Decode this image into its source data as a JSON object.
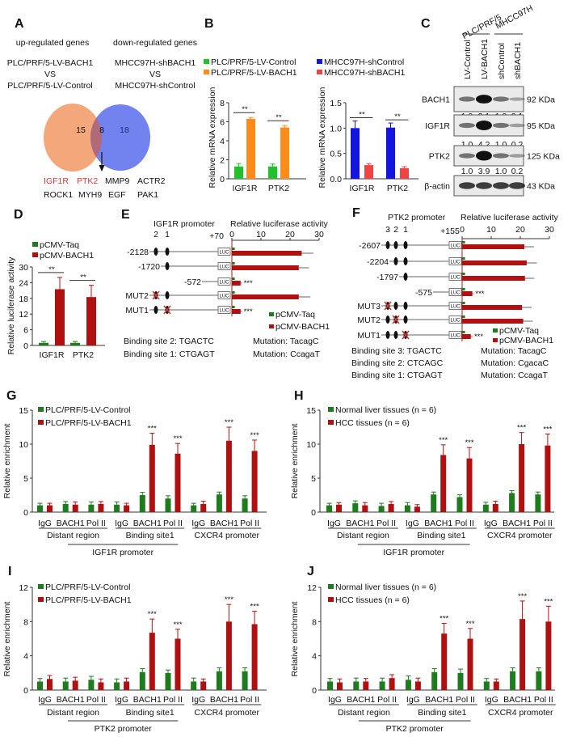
{
  "panel_labels": {
    "A": "A",
    "B": "B",
    "C": "C",
    "D": "D",
    "E": "E",
    "F": "F",
    "G": "G",
    "H": "H",
    "I": "I",
    "J": "J"
  },
  "venn": {
    "left_title": "up-regulated genes",
    "right_title": "down-regulated genes",
    "left_compare": [
      "PLC/PRF/5-LV-BACH1",
      "VS",
      "PLC/PRF/5-LV-Control"
    ],
    "right_compare": [
      "MHCC97H-shBACH1",
      "VS",
      "MHCC97H-shControl"
    ],
    "left_only": "15",
    "overlap": "8",
    "right_only": "18",
    "genes_row1": [
      "IGF1R",
      "PTK2",
      "MMP9",
      "ACTR2"
    ],
    "genes_row2": [
      "ROCK1",
      "MYH9",
      "EGF",
      "PAK1"
    ],
    "highlighted_genes": [
      "IGF1R",
      "PTK2"
    ],
    "colors": {
      "left": "#f4a77a",
      "right": "#7282ee",
      "overlap": "#b06a78",
      "highlight": "#d03a3a"
    }
  },
  "western_blot": {
    "groups": [
      "PLC/PRF/5",
      "MHCC97H"
    ],
    "lanes": [
      "LV-Control",
      "LV-BACH1",
      "shControl",
      "shBACH1"
    ],
    "rows": [
      {
        "protein": "BACH1",
        "size": "92 KDa",
        "quant": [
          "1.0",
          "3.1",
          "1.0",
          "0.1"
        ]
      },
      {
        "protein": "IGF1R",
        "size": "95 KDa",
        "quant": [
          "1.0",
          "4.2",
          "1.0",
          "0.2"
        ]
      },
      {
        "protein": "PTK2",
        "size": "125 KDa",
        "quant": [
          "1.0",
          "3.9",
          "1.0",
          "0.2"
        ]
      },
      {
        "protein": "β-actin",
        "size": "43 KDa",
        "quant": null
      }
    ]
  },
  "chart_data": [
    {
      "panel": "B",
      "type": "bar",
      "categories": [
        "IGF1R",
        "PTK2"
      ],
      "ylabel": "Relative mRNA expression",
      "ylim": [
        0,
        8
      ],
      "yticks": [
        "0",
        "2",
        "4",
        "6",
        "8"
      ],
      "series": [
        {
          "name": "PLC/PRF/5-LV-Control",
          "values": [
            1.3,
            1.3
          ],
          "errors": [
            0.3,
            0.25
          ],
          "color": "#22c02a"
        },
        {
          "name": "PLC/PRF/5-LV-BACH1",
          "values": [
            6.3,
            5.4
          ],
          "errors": [
            0.15,
            0.2
          ],
          "color": "#ff8c1a"
        }
      ],
      "significance": [
        "**",
        "**"
      ]
    },
    {
      "panel": "B",
      "type": "bar",
      "categories": [
        "IGF1R",
        "PTK2"
      ],
      "ylabel": "Relative mRNA expression",
      "ylim": [
        0,
        1.5
      ],
      "yticks": [
        "0.0",
        "0.5",
        "1.0",
        "1.5"
      ],
      "series": [
        {
          "name": "MHCC97H-shControl",
          "values": [
            1.0,
            1.01
          ],
          "errors": [
            0.14,
            0.09
          ],
          "color": "#1414e0"
        },
        {
          "name": "MHCC97H-shBACH1",
          "values": [
            0.27,
            0.21
          ],
          "errors": [
            0.03,
            0.03
          ],
          "color": "#f04444"
        }
      ],
      "significance": [
        "**",
        "**"
      ]
    },
    {
      "panel": "D",
      "type": "bar",
      "categories": [
        "IGF1R",
        "PTK2"
      ],
      "ylabel": "Relative luciferase activity",
      "ylim": [
        0,
        30
      ],
      "yticks": [
        "0",
        "6",
        "12",
        "18",
        "24",
        "30"
      ],
      "series": [
        {
          "name": "pCMV-Taq",
          "values": [
            1.0,
            1.0
          ],
          "errors": [
            0.5,
            0.5
          ],
          "color": "#1e7b1e"
        },
        {
          "name": "pCMV-BACH1",
          "values": [
            21.5,
            18.5
          ],
          "errors": [
            4.5,
            4.5
          ],
          "color": "#b01010"
        }
      ],
      "significance": [
        "**",
        "**"
      ]
    },
    {
      "panel": "E",
      "type": "bar",
      "orientation": "horizontal",
      "promoter": "IGF1R promoter",
      "xlabel": "Relative luciferase activity",
      "xlim": [
        0,
        30
      ],
      "xticks": [
        "0",
        "10",
        "20",
        "30"
      ],
      "site_labels": [
        "2",
        "1"
      ],
      "tss": "+70",
      "reporter": "LUC",
      "categories": [
        "-2128",
        "-1720",
        "-572",
        "MUT2",
        "MUT1"
      ],
      "constructs": [
        {
          "sites": [
            "2",
            "1"
          ],
          "mutated": []
        },
        {
          "sites": [
            "1"
          ],
          "mutated": []
        },
        {
          "sites": [],
          "mutated": []
        },
        {
          "sites": [
            "2",
            "1"
          ],
          "mutated": [
            "2"
          ]
        },
        {
          "sites": [
            "2",
            "1"
          ],
          "mutated": [
            "1"
          ]
        }
      ],
      "series": [
        {
          "name": "pCMV-Taq",
          "values": [
            1,
            1,
            1,
            1,
            1
          ],
          "errors": [
            0,
            0,
            0,
            0,
            0
          ],
          "color": "#1e7b1e"
        },
        {
          "name": "pCMV-BACH1",
          "values": [
            24,
            23,
            3,
            23,
            3
          ],
          "errors": [
            4,
            3.5,
            0.5,
            4,
            0.5
          ],
          "color": "#b01010"
        }
      ],
      "significance": [
        "",
        "",
        "***",
        "",
        "***"
      ],
      "binding_sites": [
        "Binding site 2: TGACTC",
        "Binding site 1: CTGAGT"
      ],
      "mutations": [
        "Mutation: TacagC",
        "Mutation: CcagaT"
      ]
    },
    {
      "panel": "F",
      "type": "bar",
      "orientation": "horizontal",
      "promoter": "PTK2 promoter",
      "xlabel": "Relative luciferase activity",
      "xlim": [
        0,
        30
      ],
      "xticks": [
        "0",
        "10",
        "20",
        "30"
      ],
      "site_labels": [
        "3",
        "2",
        "1"
      ],
      "tss": "+155",
      "reporter": "LUC",
      "categories": [
        "-2607",
        "-2204",
        "-1797",
        "-575",
        "MUT3",
        "MUT2",
        "MUT1"
      ],
      "constructs": [
        {
          "sites": [
            "3",
            "2",
            "1"
          ],
          "mutated": []
        },
        {
          "sites": [
            "2",
            "1"
          ],
          "mutated": []
        },
        {
          "sites": [
            "1"
          ],
          "mutated": []
        },
        {
          "sites": [],
          "mutated": []
        },
        {
          "sites": [
            "3",
            "2",
            "1"
          ],
          "mutated": [
            "3"
          ]
        },
        {
          "sites": [
            "3",
            "2",
            "1"
          ],
          "mutated": [
            "2"
          ]
        },
        {
          "sites": [
            "3",
            "2",
            "1"
          ],
          "mutated": [
            "1"
          ]
        }
      ],
      "series": [
        {
          "name": "pCMV-Taq",
          "values": [
            1,
            1,
            1,
            1,
            1,
            1,
            1
          ],
          "errors": [
            0,
            0,
            0,
            0,
            0,
            0,
            0
          ],
          "color": "#1e7b1e"
        },
        {
          "name": "pCMV-BACH1",
          "values": [
            21.4,
            22.2,
            21.6,
            3.5,
            20.6,
            21,
            3
          ],
          "errors": [
            3.3,
            3.5,
            3.2,
            0.5,
            3.3,
            3.3,
            0.6
          ],
          "color": "#b01010"
        }
      ],
      "significance": [
        "",
        "",
        "",
        "***",
        "",
        "",
        "***"
      ],
      "binding_sites": [
        "Binding site 3: TGACTC",
        "Binding site 2: CTCAGC",
        "Binding site 1: CTGAGT"
      ],
      "mutations": [
        "Mutation: TacagC",
        "Mutation: CgacaC",
        "Mutation: CcagaT"
      ]
    },
    {
      "panel": "G",
      "type": "bar",
      "ylabel": "Relative enrichment",
      "ylim": [
        0,
        15
      ],
      "yticks": [
        "0",
        "5",
        "10",
        "15"
      ],
      "categories": [
        "IgG",
        "BACH1",
        "Pol II",
        "IgG",
        "BACH1",
        "Pol II",
        "IgG",
        "BACH1",
        "Pol II"
      ],
      "groups": [
        "Distant region",
        "Binding site1",
        "CXCR4 promoter"
      ],
      "supergroup": "IGF1R promoter",
      "series": [
        {
          "name": "PLC/PRF/5-LV-Control",
          "values": [
            1.0,
            1.2,
            1.1,
            1.1,
            2.5,
            2.0,
            1.0,
            2.6,
            2.0
          ],
          "errors": [
            0.3,
            0.35,
            0.4,
            0.4,
            0.4,
            0.4,
            0.3,
            0.35,
            0.4
          ],
          "color": "#1e7b1e"
        },
        {
          "name": "PLC/PRF/5-LV-BACH1",
          "values": [
            1.0,
            1.1,
            1.2,
            1.0,
            9.9,
            8.6,
            1.2,
            10.5,
            9.0
          ],
          "errors": [
            0.3,
            0.4,
            0.35,
            0.3,
            1.7,
            1.5,
            0.4,
            2.0,
            1.6
          ],
          "color": "#b01010"
        }
      ],
      "significance": [
        "",
        "",
        "",
        "",
        "***",
        "***",
        "",
        "***",
        "***"
      ]
    },
    {
      "panel": "H",
      "type": "bar",
      "ylabel": "Relative enrichment",
      "ylim": [
        0,
        15
      ],
      "yticks": [
        "0",
        "5",
        "10",
        "15"
      ],
      "categories": [
        "IgG",
        "BACH1",
        "Pol II",
        "IgG",
        "BACH1",
        "Pol II",
        "IgG",
        "BACH1",
        "Pol II"
      ],
      "groups": [
        "Distant region",
        "Binding site1",
        "CXCR4 promoter"
      ],
      "supergroup": "IGF1R promoter",
      "series": [
        {
          "name": "Normal liver tissues (n = 6)",
          "values": [
            1.0,
            1.3,
            0.9,
            1.0,
            2.6,
            2.2,
            1.1,
            2.8,
            2.6
          ],
          "errors": [
            0.3,
            0.35,
            0.4,
            0.4,
            0.35,
            0.35,
            0.35,
            0.35,
            0.35
          ],
          "color": "#1e7b1e"
        },
        {
          "name": "HCC tissues (n = 6)",
          "values": [
            1.1,
            1.0,
            1.2,
            0.8,
            8.4,
            7.9,
            1.2,
            10.0,
            9.8
          ],
          "errors": [
            0.3,
            0.4,
            0.35,
            0.3,
            1.5,
            1.6,
            0.4,
            1.7,
            1.7
          ],
          "color": "#b01010"
        }
      ],
      "significance": [
        "",
        "",
        "",
        "",
        "***",
        "***",
        "",
        "***",
        "***"
      ]
    },
    {
      "panel": "I",
      "type": "bar",
      "ylabel": "Relative enrichment",
      "ylim": [
        0,
        12
      ],
      "yticks": [
        "0",
        "4",
        "8",
        "12"
      ],
      "categories": [
        "IgG",
        "BACH1",
        "Pol II",
        "IgG",
        "BACH1",
        "Pol II",
        "IgG",
        "BACH1",
        "Pol II"
      ],
      "groups": [
        "Distant region",
        "Binding site1",
        "CXCR4 promoter"
      ],
      "supergroup": "PTK2 promoter",
      "series": [
        {
          "name": "PLC/PRF/5-LV-Control",
          "values": [
            1.0,
            1.0,
            1.2,
            0.9,
            2.1,
            2.0,
            1.0,
            2.2,
            2.2
          ],
          "errors": [
            0.35,
            0.4,
            0.4,
            0.4,
            0.4,
            0.35,
            0.4,
            0.4,
            0.4
          ],
          "color": "#1e7b1e"
        },
        {
          "name": "PLC/PRF/5-LV-BACH1",
          "values": [
            1.3,
            1.1,
            0.9,
            1.0,
            6.7,
            6.0,
            1.0,
            8.0,
            7.7
          ],
          "errors": [
            0.4,
            0.4,
            0.4,
            0.4,
            1.6,
            1.1,
            0.3,
            2.0,
            1.5
          ],
          "color": "#b01010"
        }
      ],
      "significance": [
        "",
        "",
        "",
        "",
        "***",
        "***",
        "",
        "***",
        "***"
      ]
    },
    {
      "panel": "J",
      "type": "bar",
      "ylabel": "Relative enrichment",
      "ylim": [
        0,
        12
      ],
      "yticks": [
        "0",
        "4",
        "8",
        "12"
      ],
      "categories": [
        "IgG",
        "BACH1",
        "Pol II",
        "IgG",
        "BACH1",
        "Pol II",
        "IgG",
        "BACH1",
        "Pol II"
      ],
      "groups": [
        "Distant region",
        "Binding site1",
        "CXCR4 promoter"
      ],
      "supergroup": "PTK2 promoter",
      "series": [
        {
          "name": "Normal liver tissues (n = 6)",
          "values": [
            1.0,
            1.0,
            1.0,
            1.2,
            2.1,
            2.0,
            1.0,
            2.2,
            2.2
          ],
          "errors": [
            0.35,
            0.4,
            0.4,
            0.45,
            0.4,
            0.45,
            0.35,
            0.4,
            0.4
          ],
          "color": "#1e7b1e"
        },
        {
          "name": "HCC tissues (n = 6)",
          "values": [
            0.9,
            1.0,
            1.4,
            1.0,
            6.6,
            6.0,
            1.0,
            8.3,
            8.0
          ],
          "errors": [
            0.4,
            0.35,
            0.4,
            0.4,
            1.2,
            1.2,
            0.3,
            2.1,
            1.8
          ],
          "color": "#b01010"
        }
      ],
      "significance": [
        "",
        "",
        "",
        "",
        "***",
        "***",
        "",
        "***",
        "***"
      ]
    }
  ]
}
